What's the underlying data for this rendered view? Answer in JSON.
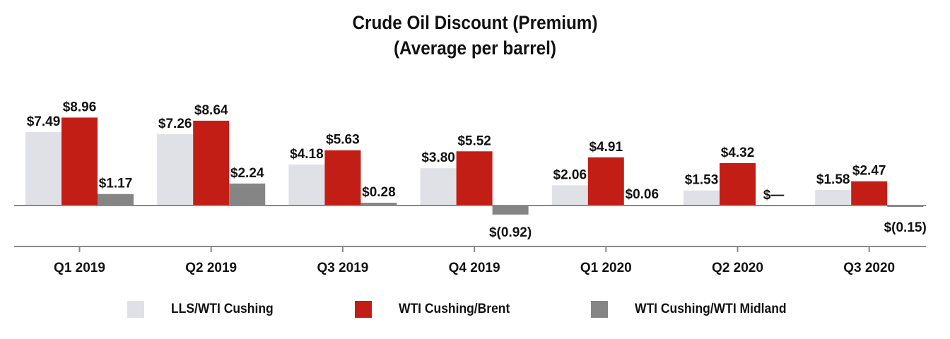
{
  "chart_data": {
    "type": "bar",
    "title": "Crude Oil Discount (Premium)",
    "subtitle": "(Average per barrel)",
    "categories": [
      "Q1 2019",
      "Q2 2019",
      "Q3 2019",
      "Q4 2019",
      "Q1 2020",
      "Q2 2020",
      "Q3 2020"
    ],
    "series": [
      {
        "name": "LLS/WTI Cushing",
        "color": "#e0e1e6",
        "values": [
          7.49,
          7.26,
          4.18,
          3.8,
          2.06,
          1.53,
          1.58
        ],
        "labels": [
          "$7.49",
          "$7.26",
          "$4.18",
          "$3.80",
          "$2.06",
          "$1.53",
          "$1.58"
        ]
      },
      {
        "name": "WTI Cushing/Brent",
        "color": "#c21e16",
        "values": [
          8.96,
          8.64,
          5.63,
          5.52,
          4.91,
          4.32,
          2.47
        ],
        "labels": [
          "$8.96",
          "$8.64",
          "$5.63",
          "$5.52",
          "$4.91",
          "$4.32",
          "$2.47"
        ]
      },
      {
        "name": "WTI Cushing/WTI Midland",
        "color": "#858585",
        "values": [
          1.17,
          2.24,
          0.28,
          -0.92,
          0.06,
          0,
          -0.15
        ],
        "labels": [
          "$1.17",
          "$2.24",
          "$0.28",
          "$(0.92)",
          "$0.06",
          "$—",
          "$(0.15)"
        ]
      }
    ],
    "xlabel": "",
    "ylabel": "",
    "grid": false,
    "legend_position": "bottom"
  }
}
